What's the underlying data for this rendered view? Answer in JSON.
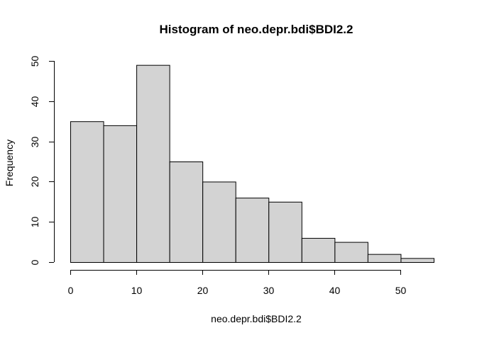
{
  "chart_data": {
    "type": "bar",
    "title": "Histogram of neo.depr.bdi$BDI2.2",
    "xlabel": "neo.depr.bdi$BDI2.2",
    "ylabel": "Frequency",
    "bins": [
      {
        "from": 0,
        "to": 5,
        "count": 35
      },
      {
        "from": 5,
        "to": 10,
        "count": 34
      },
      {
        "from": 10,
        "to": 15,
        "count": 49
      },
      {
        "from": 15,
        "to": 20,
        "count": 25
      },
      {
        "from": 20,
        "to": 25,
        "count": 20
      },
      {
        "from": 25,
        "to": 30,
        "count": 16
      },
      {
        "from": 30,
        "to": 35,
        "count": 15
      },
      {
        "from": 35,
        "to": 40,
        "count": 6
      },
      {
        "from": 40,
        "to": 45,
        "count": 5
      },
      {
        "from": 45,
        "to": 50,
        "count": 2
      },
      {
        "from": 50,
        "to": 55,
        "count": 1
      }
    ],
    "xlim": [
      0,
      55
    ],
    "ylim": [
      0,
      50
    ],
    "x_ticks": [
      0,
      10,
      20,
      30,
      40,
      50
    ],
    "y_ticks": [
      0,
      10,
      20,
      30,
      40,
      50
    ],
    "grid": false,
    "legend": "none"
  }
}
